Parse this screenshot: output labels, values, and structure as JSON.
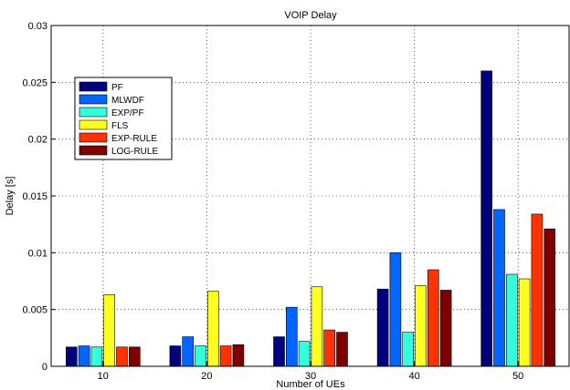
{
  "chart_data": {
    "type": "bar",
    "title": "VOIP Delay",
    "xlabel": "Number of UEs",
    "ylabel": "Delay [s]",
    "categories": [
      "10",
      "20",
      "30",
      "40",
      "50"
    ],
    "ylim": [
      0,
      0.03
    ],
    "yticks": [
      "0",
      "0.005",
      "0.01",
      "0.015",
      "0.02",
      "0.025",
      "0.03"
    ],
    "grid": true,
    "legend_position": "top-left",
    "series": [
      {
        "name": "PF",
        "color": "#00007f",
        "values": [
          0.0017,
          0.0018,
          0.0026,
          0.0068,
          0.026
        ]
      },
      {
        "name": "MLWDF",
        "color": "#0066ff",
        "values": [
          0.0018,
          0.0026,
          0.0052,
          0.01,
          0.0138
        ]
      },
      {
        "name": "EXP/PF",
        "color": "#33ffdd",
        "values": [
          0.0017,
          0.0018,
          0.0022,
          0.003,
          0.0081
        ]
      },
      {
        "name": "FLS",
        "color": "#ffff22",
        "values": [
          0.0063,
          0.0066,
          0.007,
          0.0071,
          0.0077
        ]
      },
      {
        "name": "EXP-RULE",
        "color": "#ff3300",
        "values": [
          0.0017,
          0.0018,
          0.0032,
          0.0085,
          0.0134
        ]
      },
      {
        "name": "LOG-RULE",
        "color": "#7f0000",
        "values": [
          0.0017,
          0.0019,
          0.003,
          0.0067,
          0.0121
        ]
      }
    ]
  }
}
